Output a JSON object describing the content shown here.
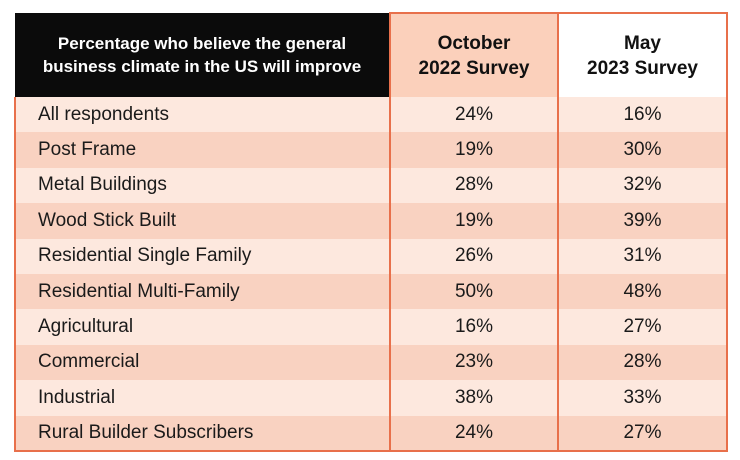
{
  "chart_data": {
    "type": "table",
    "columns": [
      "Percentage who believe the general business climate in the US will improve",
      "October 2022 Survey",
      "May 2023 Survey"
    ],
    "header_lines": {
      "col1": [
        "Percentage who believe the general",
        "business climate in the US will improve"
      ],
      "col2": [
        "October",
        "2022 Survey"
      ],
      "col3": [
        "May",
        "2023 Survey"
      ]
    },
    "rows": [
      {
        "label": "All respondents",
        "oct_2022": "24%",
        "may_2023": "16%"
      },
      {
        "label": "Post Frame",
        "oct_2022": "19%",
        "may_2023": "30%"
      },
      {
        "label": "Metal Buildings",
        "oct_2022": "28%",
        "may_2023": "32%"
      },
      {
        "label": "Wood Stick Built",
        "oct_2022": "19%",
        "may_2023": "39%"
      },
      {
        "label": "Residential Single Family",
        "oct_2022": "26%",
        "may_2023": "31%"
      },
      {
        "label": "Residential Multi-Family",
        "oct_2022": "50%",
        "may_2023": "48%"
      },
      {
        "label": "Agricultural",
        "oct_2022": "16%",
        "may_2023": "27%"
      },
      {
        "label": "Commercial",
        "oct_2022": "23%",
        "may_2023": "28%"
      },
      {
        "label": "Industrial",
        "oct_2022": "38%",
        "may_2023": "33%"
      },
      {
        "label": "Rural Builder Subscribers",
        "oct_2022": "24%",
        "may_2023": "27%"
      }
    ]
  },
  "colors": {
    "header_dark": "#0b0b0b",
    "accent_border": "#e8704b",
    "row_light": "#fde8de",
    "row_dark": "#f9d2c1",
    "oct_header": "#fbd0bb"
  }
}
